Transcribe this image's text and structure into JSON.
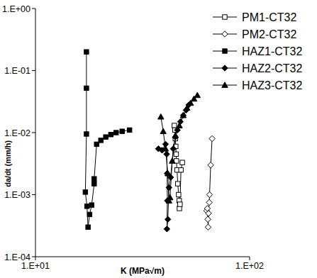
{
  "chart_data": {
    "type": "scatter",
    "x_label": "K (MPa√m)",
    "y_label": "da/dt (mm/h)",
    "log": true,
    "legend": "upper right",
    "grid": false,
    "xlim": [
      10,
      100
    ],
    "ylim": [
      0.0001,
      1
    ],
    "xticks": [
      {
        "value": 10,
        "label": "1.E+01"
      },
      {
        "value": 100,
        "label": "1.E+02"
      }
    ],
    "yticks": [
      {
        "value": 0.0001,
        "label": "1.E-04"
      },
      {
        "value": 0.001,
        "label": "1.E-03"
      },
      {
        "value": 0.01,
        "label": "1.E-02"
      },
      {
        "value": 0.1,
        "label": "1.E-01"
      },
      {
        "value": 1,
        "label": "1.E+00"
      }
    ],
    "series": [
      {
        "name": "PM1-CT32",
        "color": "#000000",
        "marker": "square-open",
        "line_style": "solid",
        "x": [
          44.5,
          44.8,
          45.0,
          45.2,
          45.4,
          45.5,
          45.8,
          46.2,
          46.6,
          46.9,
          47.0,
          47.3,
          47.8,
          48.5
        ],
        "values": [
          0.013,
          0.011,
          0.008,
          0.006,
          0.0045,
          0.0035,
          0.0025,
          0.0015,
          0.001,
          0.0008,
          0.0006,
          0.0007,
          0.0025,
          0.0033
        ]
      },
      {
        "name": "PM2-CT32",
        "color": "#000000",
        "marker": "diamond-open",
        "line_style": "solid",
        "x": [
          63.0,
          63.5,
          63.8,
          64.0,
          64.3,
          64.8,
          65.0,
          65.8,
          66.8
        ],
        "values": [
          0.00055,
          0.0006,
          0.0004,
          0.0003,
          0.0005,
          0.00075,
          0.001,
          0.003,
          0.008
        ]
      },
      {
        "name": "HAZ1-CT32",
        "color": "#000000",
        "marker": "square",
        "line_style": "solid",
        "x": [
          17.3,
          17.3,
          17.3,
          17.1,
          17.4,
          17.6,
          17.9,
          18.3,
          18.8,
          18.8,
          19.3,
          20.2,
          21.3,
          22.5,
          23.8,
          25.4,
          27.5
        ],
        "values": [
          0.2,
          0.052,
          0.0095,
          0.0011,
          0.00065,
          0.0003,
          0.00048,
          0.00068,
          0.0015,
          0.0018,
          0.0065,
          0.0075,
          0.0085,
          0.0093,
          0.01,
          0.0105,
          0.011
        ]
      },
      {
        "name": "HAZ2-CT32",
        "color": "#000000",
        "marker": "diamond",
        "line_style": "solid",
        "x": [
          37.5,
          39.0,
          40.5,
          41.0,
          41.2,
          41.3,
          41.1,
          41.5,
          42.0,
          42.8,
          44.0,
          45.0,
          46.0,
          47.5,
          49.0,
          50.5,
          52.0
        ],
        "values": [
          0.0055,
          0.0052,
          0.0065,
          0.0045,
          0.0022,
          0.0008,
          0.00028,
          0.0004,
          0.0013,
          0.0019,
          0.0055,
          0.0085,
          0.011,
          0.015,
          0.019,
          0.023,
          0.028
        ]
      },
      {
        "name": "HAZ3-CT32",
        "color": "#000000",
        "marker": "triangle",
        "line_style": "solid",
        "x": [
          38.5,
          39.5,
          40.5,
          41.5,
          42.0,
          42.5,
          43.5,
          45.0,
          47.0,
          49.0,
          51.0,
          53.0,
          55.0,
          57.0
        ],
        "values": [
          0.018,
          0.0105,
          0.0055,
          0.0022,
          0.0008,
          0.0009,
          0.0035,
          0.009,
          0.013,
          0.019,
          0.025,
          0.03,
          0.035,
          0.04
        ]
      }
    ]
  }
}
